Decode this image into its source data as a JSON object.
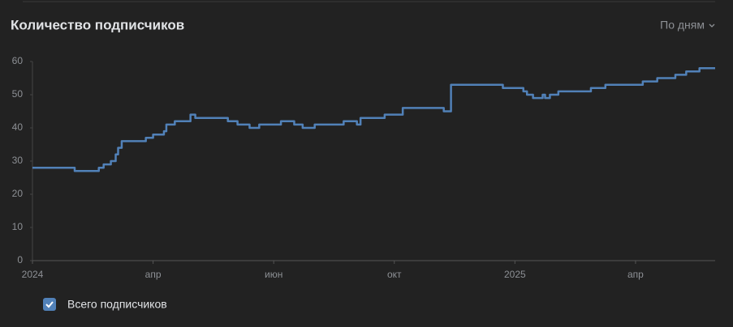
{
  "header": {
    "title": "Количество подписчиков",
    "period": "По дням"
  },
  "chart_data": {
    "type": "line",
    "step": true,
    "color": "#5181b8",
    "x": [
      0,
      0.35,
      0.55,
      0.59,
      0.65,
      0.69,
      0.71,
      0.74,
      0.94,
      1.0,
      1.09,
      1.11,
      1.18,
      1.31,
      1.35,
      1.62,
      1.7,
      1.8,
      1.88,
      2.06,
      2.17,
      2.24,
      2.34,
      2.58,
      2.69,
      2.72,
      2.92,
      3.07,
      3.41,
      3.47,
      3.9,
      4.07,
      4.1,
      4.15,
      4.23,
      4.25,
      4.29,
      4.36,
      4.63,
      4.75,
      5.06,
      5.18,
      5.33,
      5.42,
      5.53,
      5.66
    ],
    "series": [
      {
        "name": "Всего подписчиков",
        "color": "#5181b8",
        "values": [
          28,
          27,
          28,
          29,
          30,
          32,
          34,
          36,
          37,
          38,
          39,
          41,
          42,
          44,
          43,
          42,
          41,
          40,
          41,
          42,
          41,
          40,
          41,
          42,
          41,
          43,
          44,
          46,
          45,
          53,
          52,
          51,
          50,
          49,
          50,
          49,
          50,
          51,
          52,
          53,
          54,
          55,
          56,
          57,
          58,
          58
        ]
      }
    ],
    "xlim": [
      0,
      5.66
    ],
    "xticks": [
      {
        "value": 0,
        "label": "2024"
      },
      {
        "value": 1,
        "label": "апр"
      },
      {
        "value": 2,
        "label": "июн"
      },
      {
        "value": 3,
        "label": "окт"
      },
      {
        "value": 4,
        "label": "2025"
      },
      {
        "value": 5,
        "label": "апр"
      }
    ],
    "ylim": [
      0,
      60
    ],
    "yticks": [
      0,
      10,
      20,
      30,
      40,
      50,
      60
    ]
  }
}
